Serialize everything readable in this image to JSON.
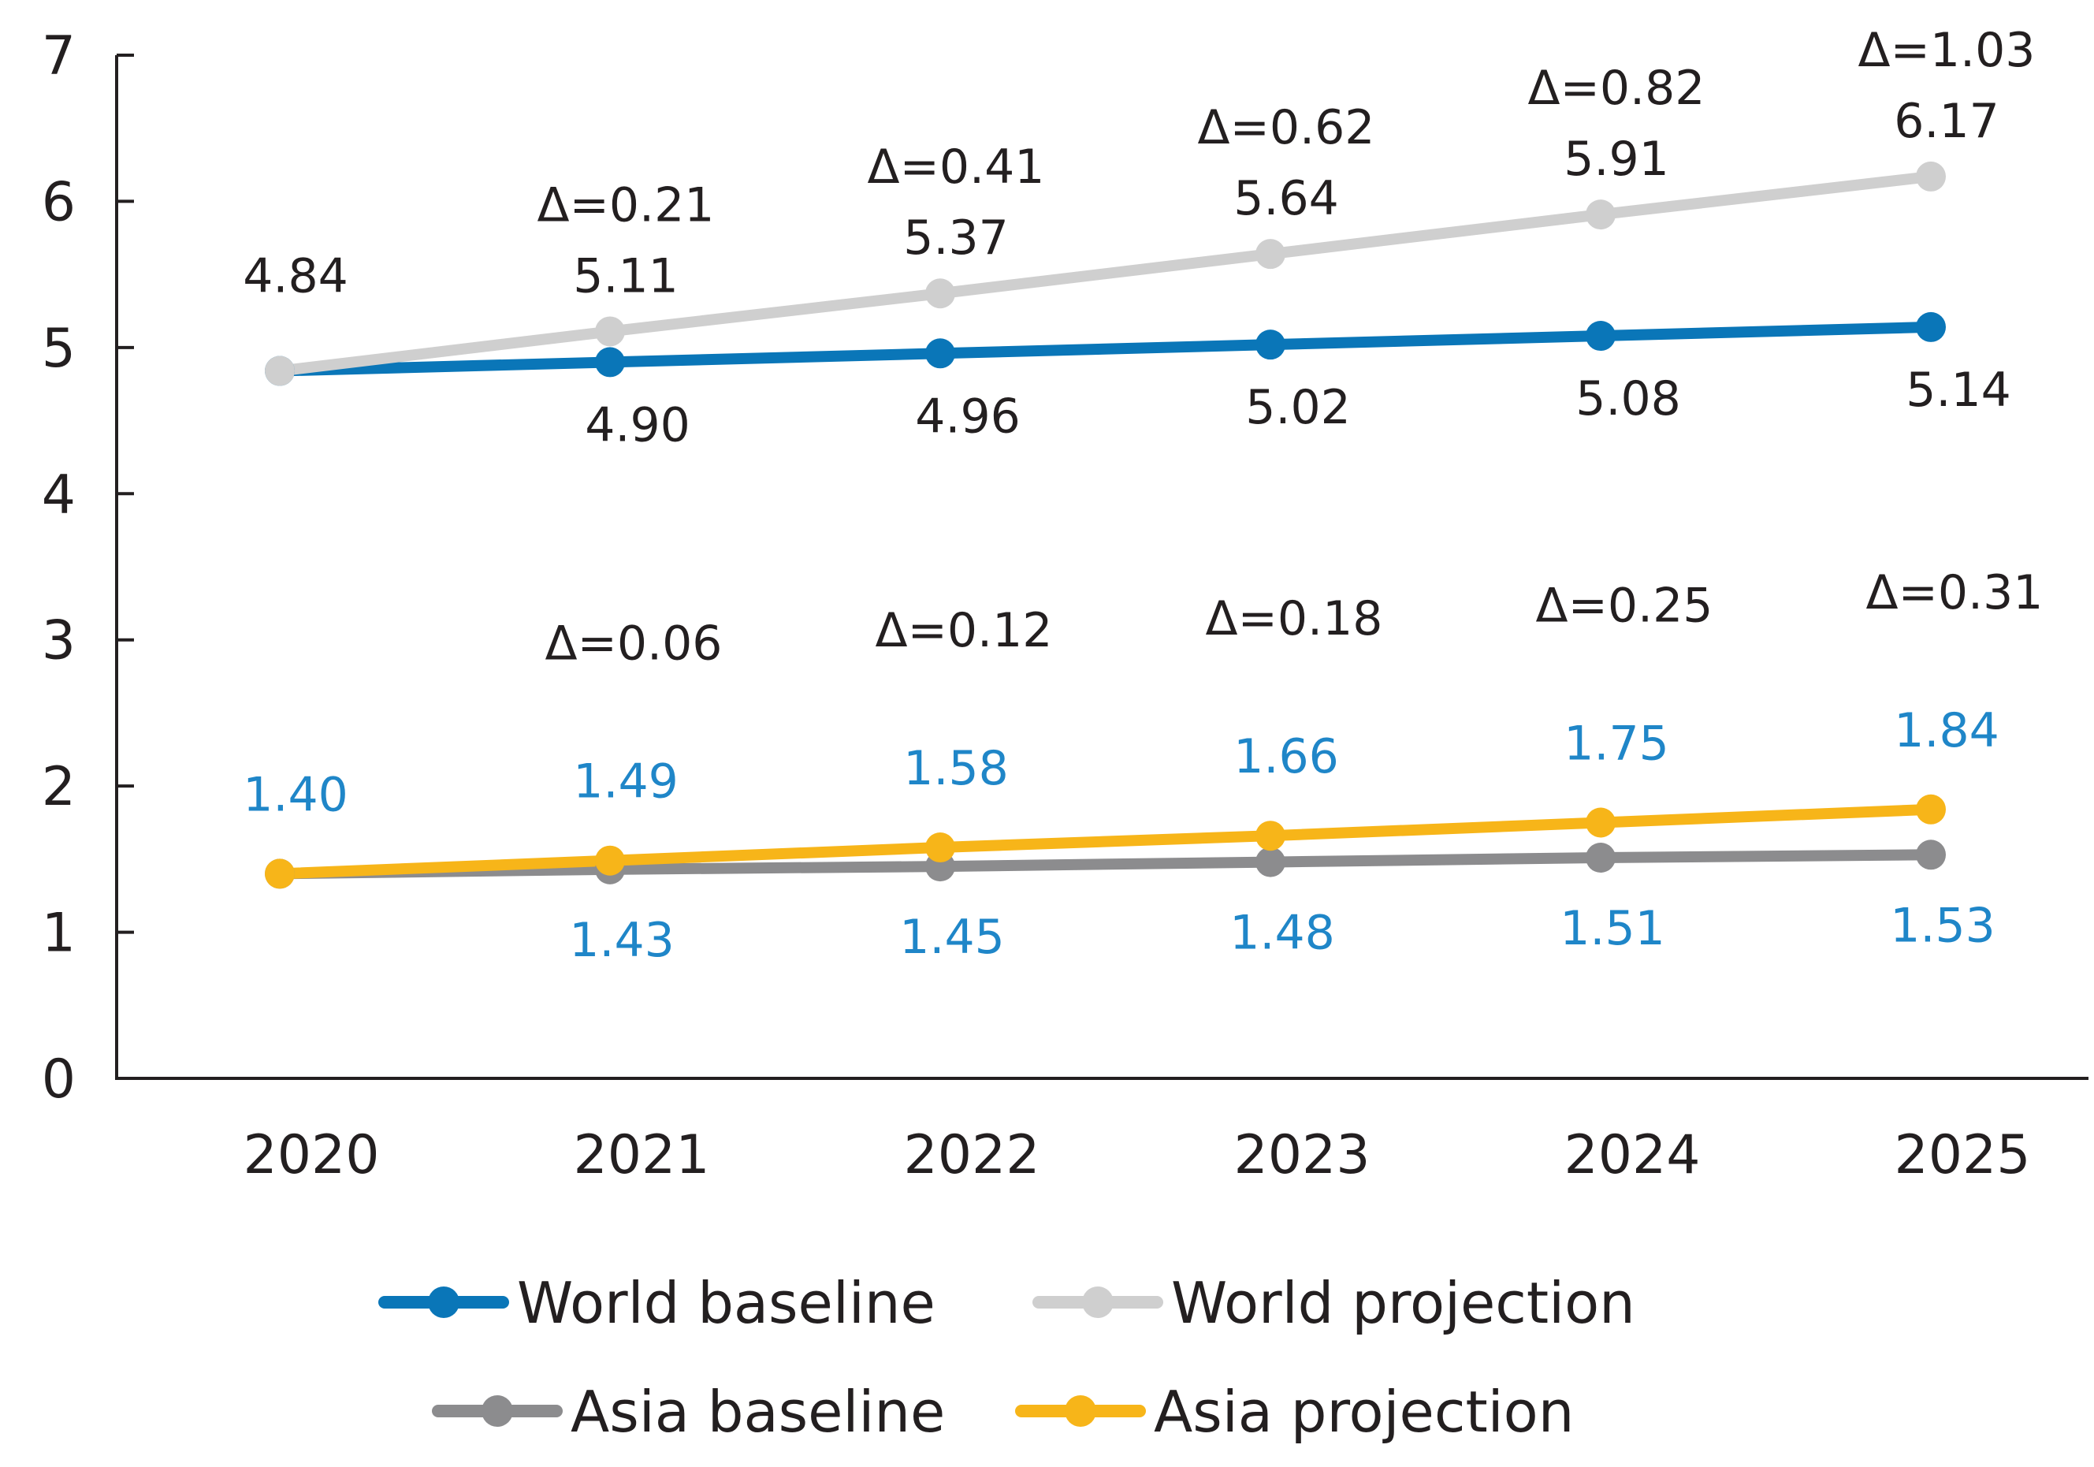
{
  "chart_data": {
    "type": "line",
    "title": "",
    "xlabel": "",
    "ylabel": "",
    "categories": [
      "2020",
      "2021",
      "2022",
      "2023",
      "2024",
      "2025"
    ],
    "y_ticks": [
      "0",
      "1",
      "2",
      "3",
      "4",
      "5",
      "6",
      "7"
    ],
    "ylim": [
      0,
      7
    ],
    "grid": false,
    "legend_position": "bottom",
    "series": [
      {
        "key": "world_baseline",
        "name": "World baseline",
        "color": "#0a76b8",
        "values": [
          4.84,
          4.9,
          4.96,
          5.02,
          5.08,
          5.14
        ],
        "labels": [
          "4.84",
          "4.90",
          "4.96",
          "5.02",
          "5.08",
          "5.14"
        ]
      },
      {
        "key": "world_projection",
        "name": "World projection",
        "color": "#cfcfcf",
        "values": [
          4.84,
          5.11,
          5.37,
          5.64,
          5.91,
          6.17
        ],
        "labels": [
          "",
          "5.11",
          "5.37",
          "5.64",
          "5.91",
          "6.17"
        ],
        "deltas": [
          "",
          "Δ=0.21",
          "Δ=0.41",
          "Δ=0.62",
          "Δ=0.82",
          "Δ=1.03"
        ]
      },
      {
        "key": "asia_baseline",
        "name": "Asia baseline",
        "color": "#8c8c8e",
        "values": [
          1.4,
          1.43,
          1.45,
          1.48,
          1.51,
          1.53
        ],
        "labels": [
          "",
          "1.43",
          "1.45",
          "1.48",
          "1.51",
          "1.53"
        ]
      },
      {
        "key": "asia_projection",
        "name": "Asia projection",
        "color": "#f7b519",
        "values": [
          1.4,
          1.49,
          1.58,
          1.66,
          1.75,
          1.84
        ],
        "labels": [
          "1.40",
          "1.49",
          "1.58",
          "1.66",
          "1.75",
          "1.84"
        ],
        "deltas": [
          "",
          "Δ=0.06",
          "Δ=0.12",
          "Δ=0.18",
          "Δ=0.25",
          "Δ=0.31"
        ]
      }
    ],
    "axis_color": "#231f20",
    "asia_label_color": "#1f86c8"
  }
}
